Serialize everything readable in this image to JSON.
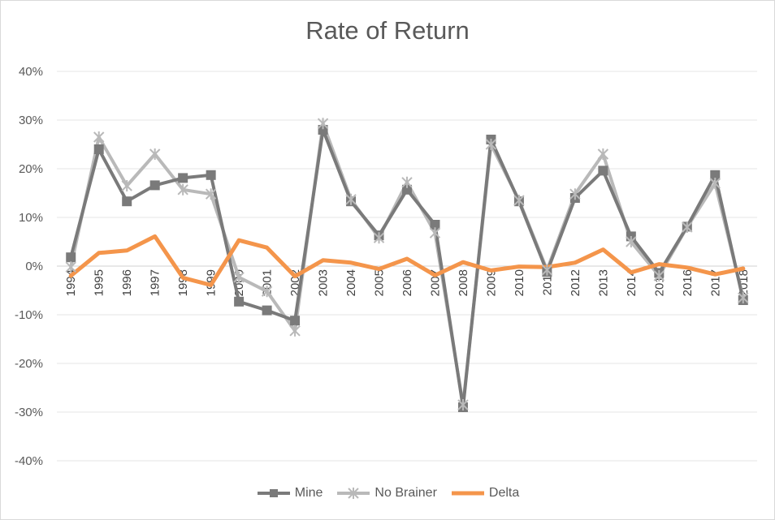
{
  "chart_data": {
    "type": "line",
    "title": "Rate of Return",
    "xlabel": "",
    "ylabel": "",
    "ylim": [
      -0.4,
      0.4
    ],
    "ytick_values": [
      0.4,
      0.3,
      0.2,
      0.1,
      0,
      -0.1,
      -0.2,
      -0.3,
      -0.4
    ],
    "ytick_labels": [
      "40%",
      "30%",
      "20%",
      "10%",
      "0%",
      "-10%",
      "-20%",
      "-30%",
      "-40%"
    ],
    "grid": true,
    "legend_position": "bottom",
    "categories": [
      "1994",
      "1995",
      "1996",
      "1997",
      "1998",
      "1999",
      "2000",
      "2001",
      "2002",
      "2003",
      "2004",
      "2005",
      "2006",
      "2007",
      "2008",
      "2009",
      "2010",
      "2011",
      "2012",
      "2013",
      "2014",
      "2015",
      "2016",
      "2017",
      "2018"
    ],
    "series": [
      {
        "name": "Mine",
        "color": "#7a7a7a",
        "marker": "square",
        "values": [
          0.018,
          0.24,
          0.133,
          0.166,
          0.181,
          0.187,
          -0.073,
          -0.091,
          -0.112,
          0.28,
          0.133,
          0.063,
          0.157,
          0.085,
          -0.29,
          0.26,
          0.133,
          -0.012,
          0.14,
          0.196,
          0.061,
          -0.014,
          0.081,
          0.187,
          -0.07
        ]
      },
      {
        "name": "No Brainer",
        "color": "#b9b9b9",
        "marker": "x",
        "values": [
          -0.002,
          0.265,
          0.165,
          0.23,
          0.157,
          0.148,
          -0.023,
          -0.052,
          -0.133,
          0.293,
          0.137,
          0.058,
          0.172,
          0.068,
          -0.285,
          0.25,
          0.135,
          -0.008,
          0.148,
          0.23,
          0.05,
          -0.02,
          0.08,
          0.17,
          -0.065
        ]
      },
      {
        "name": "Delta",
        "color": "#f4954b",
        "marker": "none",
        "values": [
          -0.02,
          0.027,
          0.032,
          0.061,
          -0.024,
          -0.039,
          0.053,
          0.038,
          -0.021,
          0.012,
          0.007,
          -0.006,
          0.015,
          -0.019,
          0.008,
          -0.009,
          -0.001,
          -0.002,
          0.007,
          0.034,
          -0.013,
          0.004,
          -0.003,
          -0.017,
          -0.005
        ]
      }
    ]
  }
}
